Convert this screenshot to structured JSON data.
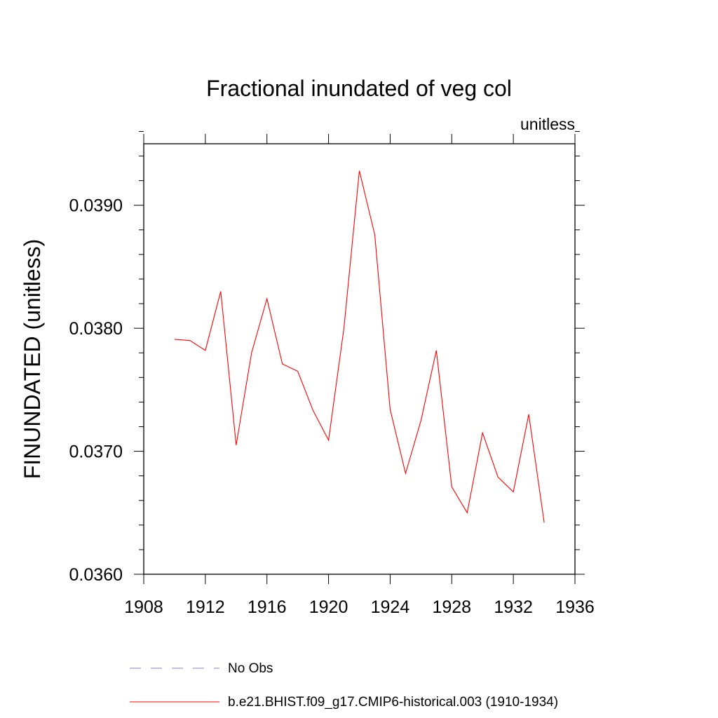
{
  "chart_data": {
    "type": "line",
    "title": "Fractional inundated of veg col",
    "units_label": "unitless",
    "ylabel": "FINUNDATED  (unitless)",
    "xlabel": "",
    "xlim": [
      1908,
      1936
    ],
    "ylim": [
      0.036,
      0.0395
    ],
    "x_ticks": [
      1908,
      1912,
      1916,
      1920,
      1924,
      1928,
      1932,
      1936
    ],
    "x_tick_labels": [
      "1908",
      "1912",
      "1916",
      "1920",
      "1924",
      "1928",
      "1932",
      "1936"
    ],
    "y_ticks": [
      0.036,
      0.037,
      0.038,
      0.039
    ],
    "y_tick_labels": [
      "0.0360",
      "0.0370",
      "0.0380",
      "0.0390"
    ],
    "grid": false,
    "legend_position": "bottom",
    "legend": [
      {
        "label": "No Obs",
        "color": "#8080c0",
        "dashed": true
      },
      {
        "label": "b.e21.BHIST.f09_g17.CMIP6-historical.003 (1910-1934)",
        "color": "#ff0000",
        "dashed": false
      }
    ],
    "series": [
      {
        "name": "b.e21.BHIST.f09_g17.CMIP6-historical.003 (1910-1934)",
        "color": "#ff0000",
        "x": [
          1910,
          1911,
          1912,
          1913,
          1914,
          1915,
          1916,
          1917,
          1918,
          1919,
          1920,
          1921,
          1922,
          1923,
          1924,
          1925,
          1926,
          1927,
          1928,
          1929,
          1930,
          1931,
          1932,
          1933,
          1934
        ],
        "y": [
          0.03791,
          0.0379,
          0.03782,
          0.0383,
          0.03705,
          0.0378,
          0.03824,
          0.03771,
          0.03765,
          0.03733,
          0.03709,
          0.038,
          0.03928,
          0.03876,
          0.03734,
          0.03682,
          0.03725,
          0.03782,
          0.03671,
          0.0365,
          0.03715,
          0.03679,
          0.03667,
          0.0373,
          0.03642
        ]
      }
    ]
  }
}
